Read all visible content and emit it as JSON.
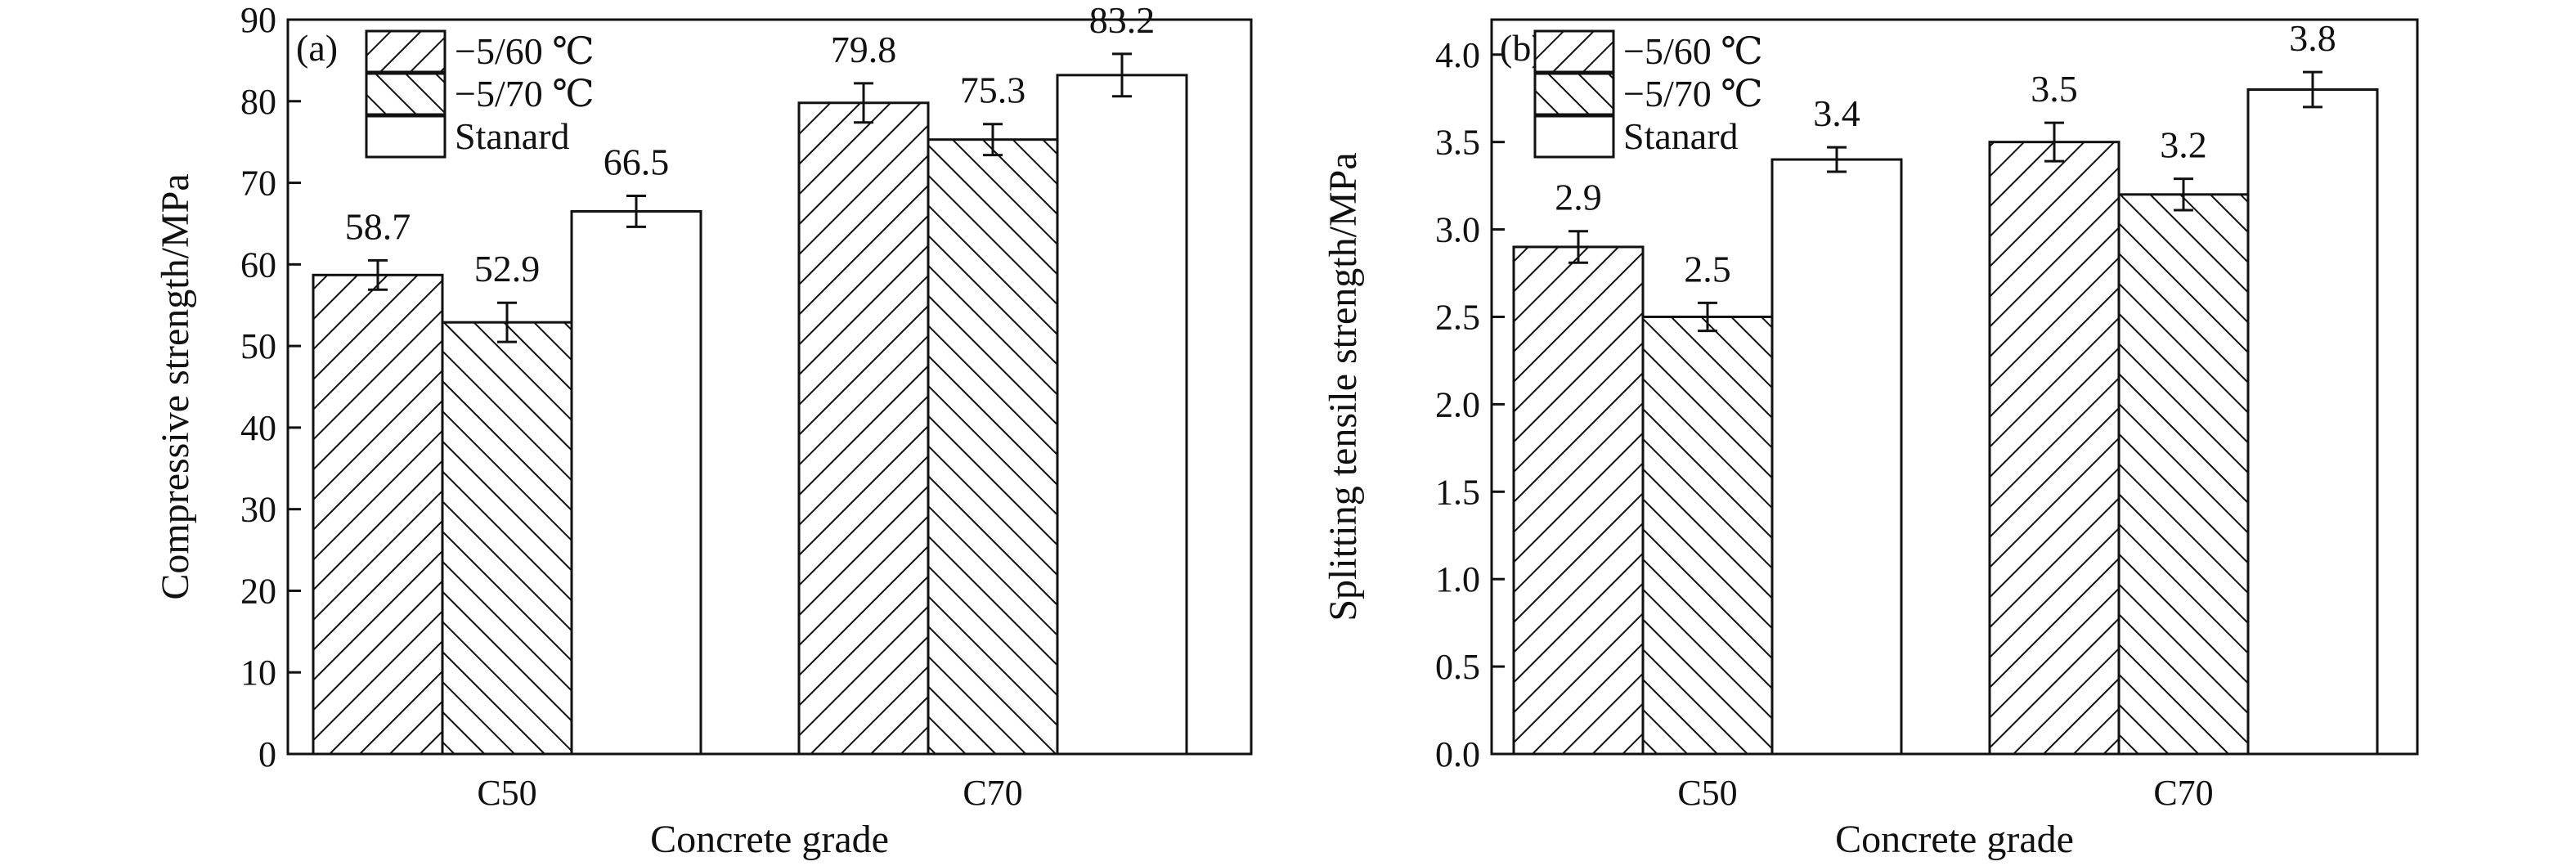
{
  "chart_data": [
    {
      "type": "bar",
      "panel_label": "(a)",
      "categories": [
        "C50",
        "C70"
      ],
      "series": [
        {
          "name": "−5/60 ℃",
          "values": [
            58.7,
            79.8
          ],
          "errors": [
            1.8,
            2.4
          ],
          "pattern": "hatch-right"
        },
        {
          "name": "−5/70 ℃",
          "values": [
            52.9,
            75.3
          ],
          "errors": [
            2.4,
            1.9
          ],
          "pattern": "hatch-left"
        },
        {
          "name": "Stanard",
          "values": [
            66.5,
            83.2
          ],
          "errors": [
            1.9,
            2.6
          ],
          "pattern": "none"
        }
      ],
      "data_labels": [
        "58.7",
        "52.9",
        "66.5",
        "79.8",
        "75.3",
        "83.2"
      ],
      "xlabel": "Concrete grade",
      "ylabel": "Compressive strength/MPa",
      "ylim": [
        0,
        90
      ],
      "yticks": [
        0,
        10,
        20,
        30,
        40,
        50,
        60,
        70,
        80,
        90
      ],
      "ytick_labels": [
        "0",
        "10",
        "20",
        "30",
        "40",
        "50",
        "60",
        "70",
        "80",
        "90"
      ],
      "legend_position": "top-left",
      "grid": false
    },
    {
      "type": "bar",
      "panel_label": "(b)",
      "categories": [
        "C50",
        "C70"
      ],
      "series": [
        {
          "name": "−5/60 ℃",
          "values": [
            2.9,
            3.5
          ],
          "errors": [
            0.09,
            0.11
          ],
          "pattern": "hatch-right"
        },
        {
          "name": "−5/70 ℃",
          "values": [
            2.5,
            3.2
          ],
          "errors": [
            0.08,
            0.09
          ],
          "pattern": "hatch-left"
        },
        {
          "name": "Stanard",
          "values": [
            3.4,
            3.8
          ],
          "errors": [
            0.07,
            0.1
          ],
          "pattern": "none"
        }
      ],
      "data_labels": [
        "2.9",
        "2.5",
        "3.4",
        "3.5",
        "3.2",
        "3.8"
      ],
      "xlabel": "Concrete grade",
      "ylabel": "Splitting tensile strength/MPa",
      "ylim": [
        0,
        4.2
      ],
      "yticks": [
        0,
        0.5,
        1,
        1.5,
        2,
        2.5,
        3,
        3.5,
        4
      ],
      "ytick_labels": [
        "0.0",
        "0.5",
        "1.0",
        "1.5",
        "2.0",
        "2.5",
        "3.0",
        "3.5",
        "4.0"
      ],
      "legend_position": "top-left",
      "grid": false
    }
  ]
}
